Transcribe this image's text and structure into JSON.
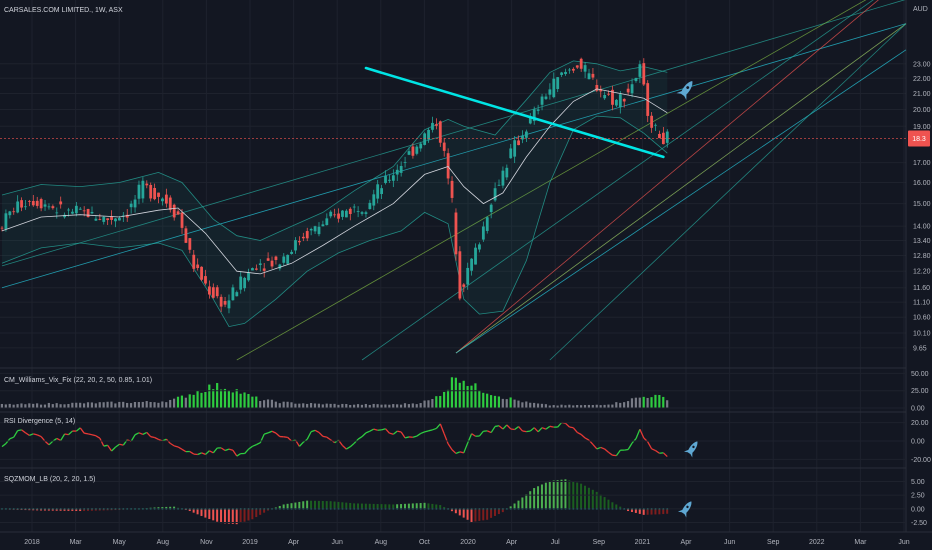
{
  "header": {
    "symbol_label": "CARSALES.COM LIMITED., 1W, ASX",
    "currency": "AUD"
  },
  "colors": {
    "background": "#131722",
    "bull": "#26a69a",
    "bull_bright": "#4caf50",
    "bear": "#ef5350",
    "trendline": "#00e5e5",
    "band": "#26a69a",
    "grid": "#1e222d",
    "price_line": "#ef5350",
    "rsi_up": "#2ecc40",
    "rsi_down": "#e53935",
    "vix_hi": "#2ecc40",
    "vix_lo": "#787b86",
    "icon": "#5fa8d3"
  },
  "chart_data": [
    {
      "type": "candlestick",
      "name": "price",
      "x_ticks": [
        "2018",
        "Mar",
        "May",
        "Aug",
        "Nov",
        "2019",
        "Apr",
        "Jun",
        "Aug",
        "Oct",
        "2020",
        "Apr",
        "Jul",
        "Sep",
        "2021",
        "Apr",
        "Jun",
        "Sep",
        "2022",
        "Mar",
        "Jun"
      ],
      "y_ticks": [
        "23.00",
        "22.00",
        "21.00",
        "20.00",
        "19.00",
        "17.00",
        "16.00",
        "15.00",
        "14.00",
        "13.40",
        "12.80",
        "12.20",
        "11.60",
        "11.10",
        "10.60",
        "10.10",
        "9.65"
      ],
      "y_scale": "log",
      "ylim": [
        9.3,
        25.5
      ],
      "last_price_marker": "18.3",
      "x_range_weeks": [
        0,
        231
      ],
      "path_points": [
        [
          0,
          13.9
        ],
        [
          4,
          14.8
        ],
        [
          8,
          15.2
        ],
        [
          12,
          15.0
        ],
        [
          17,
          14.6
        ],
        [
          22,
          14.6
        ],
        [
          28,
          14.3
        ],
        [
          33,
          14.6
        ],
        [
          37,
          15.8
        ],
        [
          42,
          15.3
        ],
        [
          46,
          14.5
        ],
        [
          50,
          12.4
        ],
        [
          54,
          11.5
        ],
        [
          58,
          11.0
        ],
        [
          62,
          11.8
        ],
        [
          66,
          12.5
        ],
        [
          72,
          12.6
        ],
        [
          78,
          13.6
        ],
        [
          84,
          14.2
        ],
        [
          88,
          14.6
        ],
        [
          94,
          15.0
        ],
        [
          99,
          16.0
        ],
        [
          104,
          17.2
        ],
        [
          108,
          18.2
        ],
        [
          112,
          19.3
        ],
        [
          114,
          17.4
        ],
        [
          116,
          15.0
        ],
        [
          118,
          11.5
        ],
        [
          120,
          12.2
        ],
        [
          123,
          13.4
        ],
        [
          126,
          15.2
        ],
        [
          131,
          17.5
        ],
        [
          136,
          19.3
        ],
        [
          140,
          21.0
        ],
        [
          144,
          22.2
        ],
        [
          148,
          23.0
        ],
        [
          152,
          21.8
        ],
        [
          155,
          21.0
        ],
        [
          158,
          20.5
        ],
        [
          161,
          21.2
        ],
        [
          164,
          22.6
        ],
        [
          166,
          20.0
        ],
        [
          168,
          18.7
        ],
        [
          170,
          18.3
        ]
      ],
      "ma": [
        [
          0,
          13.8
        ],
        [
          10,
          14.4
        ],
        [
          20,
          14.5
        ],
        [
          30,
          14.4
        ],
        [
          40,
          14.7
        ],
        [
          45,
          14.8
        ],
        [
          52,
          13.7
        ],
        [
          60,
          12.2
        ],
        [
          66,
          12.1
        ],
        [
          74,
          12.5
        ],
        [
          82,
          13.2
        ],
        [
          90,
          14.0
        ],
        [
          100,
          15.0
        ],
        [
          108,
          16.4
        ],
        [
          114,
          16.8
        ],
        [
          118,
          15.8
        ],
        [
          123,
          15.0
        ],
        [
          128,
          15.5
        ],
        [
          134,
          17.3
        ],
        [
          140,
          19.0
        ],
        [
          146,
          20.5
        ],
        [
          152,
          21.3
        ],
        [
          158,
          21.0
        ],
        [
          164,
          20.7
        ],
        [
          170,
          19.8
        ]
      ],
      "bb_upper": [
        [
          0,
          15.4
        ],
        [
          10,
          15.9
        ],
        [
          20,
          15.8
        ],
        [
          30,
          16.0
        ],
        [
          40,
          16.5
        ],
        [
          46,
          16.0
        ],
        [
          54,
          14.3
        ],
        [
          60,
          13.6
        ],
        [
          66,
          13.4
        ],
        [
          74,
          14.0
        ],
        [
          82,
          14.6
        ],
        [
          90,
          15.6
        ],
        [
          100,
          16.8
        ],
        [
          108,
          18.8
        ],
        [
          114,
          19.4
        ],
        [
          118,
          19.0
        ],
        [
          126,
          18.5
        ],
        [
          134,
          20.6
        ],
        [
          140,
          22.4
        ],
        [
          146,
          23.2
        ],
        [
          152,
          23.0
        ],
        [
          158,
          22.5
        ],
        [
          164,
          22.8
        ],
        [
          170,
          22.4
        ]
      ],
      "bb_lower": [
        [
          0,
          12.5
        ],
        [
          10,
          13.1
        ],
        [
          20,
          13.3
        ],
        [
          30,
          13.1
        ],
        [
          40,
          13.3
        ],
        [
          46,
          13.0
        ],
        [
          54,
          11.2
        ],
        [
          58,
          10.3
        ],
        [
          62,
          10.4
        ],
        [
          70,
          11.2
        ],
        [
          78,
          12.2
        ],
        [
          86,
          12.9
        ],
        [
          94,
          13.4
        ],
        [
          102,
          13.8
        ],
        [
          108,
          14.6
        ],
        [
          114,
          14.1
        ],
        [
          118,
          11.2
        ],
        [
          122,
          10.7
        ],
        [
          128,
          10.8
        ],
        [
          134,
          12.6
        ],
        [
          140,
          16.0
        ],
        [
          146,
          18.8
        ],
        [
          152,
          19.6
        ],
        [
          158,
          19.5
        ],
        [
          164,
          18.6
        ],
        [
          170,
          17.5
        ]
      ],
      "trendline": [
        [
          93,
          22.7
        ],
        [
          169,
          17.3
        ]
      ]
    },
    {
      "type": "bar",
      "name": "CM_Williams_Vix_Fix (22, 20, 2, 50, 0.85, 1.01)",
      "y_ticks": [
        "50.00",
        "25.00",
        "0.00"
      ],
      "ylim": [
        0,
        52
      ],
      "threshold": 25,
      "series_points": [
        [
          0,
          5
        ],
        [
          10,
          6
        ],
        [
          20,
          7
        ],
        [
          30,
          8
        ],
        [
          40,
          9
        ],
        [
          44,
          12
        ],
        [
          50,
          24
        ],
        [
          53,
          30
        ],
        [
          56,
          31
        ],
        [
          59,
          28
        ],
        [
          62,
          20
        ],
        [
          66,
          12
        ],
        [
          72,
          8
        ],
        [
          80,
          6
        ],
        [
          90,
          5
        ],
        [
          100,
          5
        ],
        [
          106,
          7
        ],
        [
          110,
          12
        ],
        [
          114,
          30
        ],
        [
          116,
          48
        ],
        [
          118,
          42
        ],
        [
          120,
          32
        ],
        [
          124,
          24
        ],
        [
          128,
          16
        ],
        [
          134,
          8
        ],
        [
          140,
          4
        ],
        [
          150,
          4
        ],
        [
          156,
          6
        ],
        [
          162,
          14
        ],
        [
          166,
          18
        ],
        [
          170,
          14
        ]
      ]
    },
    {
      "type": "line",
      "name": "RSI Divergence (5, 14)",
      "y_ticks": [
        "20.00",
        "0.00",
        "-20.00"
      ],
      "ylim": [
        -25,
        25
      ],
      "series_points": [
        [
          0,
          -6
        ],
        [
          4,
          10
        ],
        [
          8,
          8
        ],
        [
          12,
          -4
        ],
        [
          16,
          6
        ],
        [
          20,
          12
        ],
        [
          24,
          4
        ],
        [
          28,
          -10
        ],
        [
          32,
          0
        ],
        [
          36,
          10
        ],
        [
          40,
          4
        ],
        [
          44,
          -6
        ],
        [
          48,
          -14
        ],
        [
          52,
          -16
        ],
        [
          56,
          -6
        ],
        [
          60,
          -14
        ],
        [
          64,
          -8
        ],
        [
          68,
          10
        ],
        [
          72,
          6
        ],
        [
          76,
          -4
        ],
        [
          80,
          12
        ],
        [
          84,
          4
        ],
        [
          88,
          -8
        ],
        [
          92,
          6
        ],
        [
          96,
          14
        ],
        [
          100,
          10
        ],
        [
          104,
          4
        ],
        [
          108,
          12
        ],
        [
          112,
          16
        ],
        [
          114,
          -6
        ],
        [
          116,
          -16
        ],
        [
          118,
          -10
        ],
        [
          120,
          6
        ],
        [
          124,
          10
        ],
        [
          128,
          16
        ],
        [
          132,
          14
        ],
        [
          136,
          12
        ],
        [
          140,
          16
        ],
        [
          144,
          18
        ],
        [
          148,
          8
        ],
        [
          152,
          -6
        ],
        [
          156,
          -14
        ],
        [
          160,
          -10
        ],
        [
          163,
          10
        ],
        [
          166,
          -8
        ],
        [
          170,
          -14
        ]
      ]
    },
    {
      "type": "bar",
      "name": "SQZMOM_LB (20, 2, 20, 1.5)",
      "y_ticks": [
        "5.00",
        "2.50",
        "0.00",
        "-2.50"
      ],
      "ylim": [
        -3.5,
        6
      ],
      "series_points": [
        [
          0,
          -0.1
        ],
        [
          10,
          -0.3
        ],
        [
          20,
          -0.4
        ],
        [
          30,
          -0.2
        ],
        [
          40,
          0.3
        ],
        [
          44,
          0.4
        ],
        [
          48,
          -0.4
        ],
        [
          52,
          -1.6
        ],
        [
          56,
          -2.6
        ],
        [
          60,
          -2.8
        ],
        [
          64,
          -1.9
        ],
        [
          68,
          -0.3
        ],
        [
          72,
          0.8
        ],
        [
          78,
          1.5
        ],
        [
          84,
          1.4
        ],
        [
          90,
          1.0
        ],
        [
          100,
          0.8
        ],
        [
          108,
          1.1
        ],
        [
          112,
          0.7
        ],
        [
          116,
          -0.8
        ],
        [
          120,
          -2.4
        ],
        [
          124,
          -2.0
        ],
        [
          128,
          -0.6
        ],
        [
          132,
          1.5
        ],
        [
          136,
          3.8
        ],
        [
          140,
          5.1
        ],
        [
          144,
          5.4
        ],
        [
          148,
          4.6
        ],
        [
          152,
          3.1
        ],
        [
          156,
          1.2
        ],
        [
          160,
          -0.4
        ],
        [
          164,
          -1.1
        ],
        [
          168,
          -1.0
        ],
        [
          170,
          -0.9
        ]
      ]
    }
  ]
}
